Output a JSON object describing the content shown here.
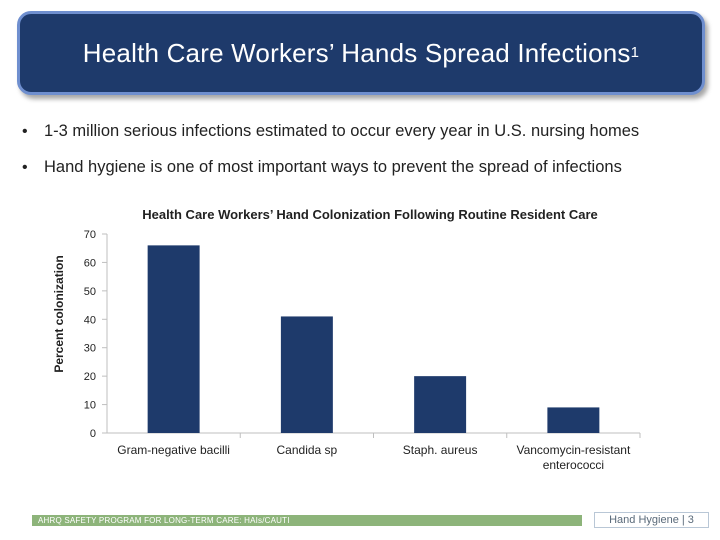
{
  "slide": {
    "title": "Health Care Workers’ Hands Spread Infections",
    "title_superscript": "1",
    "bullets": [
      "1-3 million serious infections estimated to occur every year in U.S. nursing homes",
      "Hand hygiene is one of most important ways to prevent the spread of infections"
    ],
    "footer_text": "AHRQ SAFETY PROGRAM FOR LONG-TERM CARE: HAIs/CAUTI",
    "page_label": "Hand Hygiene | 3"
  },
  "colors": {
    "title_bg": "#1e3a6b",
    "title_border": "#6f8fcf",
    "bar": "#1e3a6b",
    "footer_bar": "#8db47a"
  },
  "chart_data": {
    "type": "bar",
    "title": "Health Care Workers’ Hand Colonization Following Routine Resident Care",
    "xlabel": "",
    "ylabel": "Percent colonization",
    "categories": [
      "Gram-negative bacilli",
      "Candida sp",
      "Staph. aureus",
      "Vancomycin-resistant enterococci"
    ],
    "values": [
      66,
      41,
      20,
      9
    ],
    "ylim": [
      0,
      70
    ],
    "yticks": [
      0,
      10,
      20,
      30,
      40,
      50,
      60,
      70
    ],
    "grid": false,
    "legend": "none"
  }
}
